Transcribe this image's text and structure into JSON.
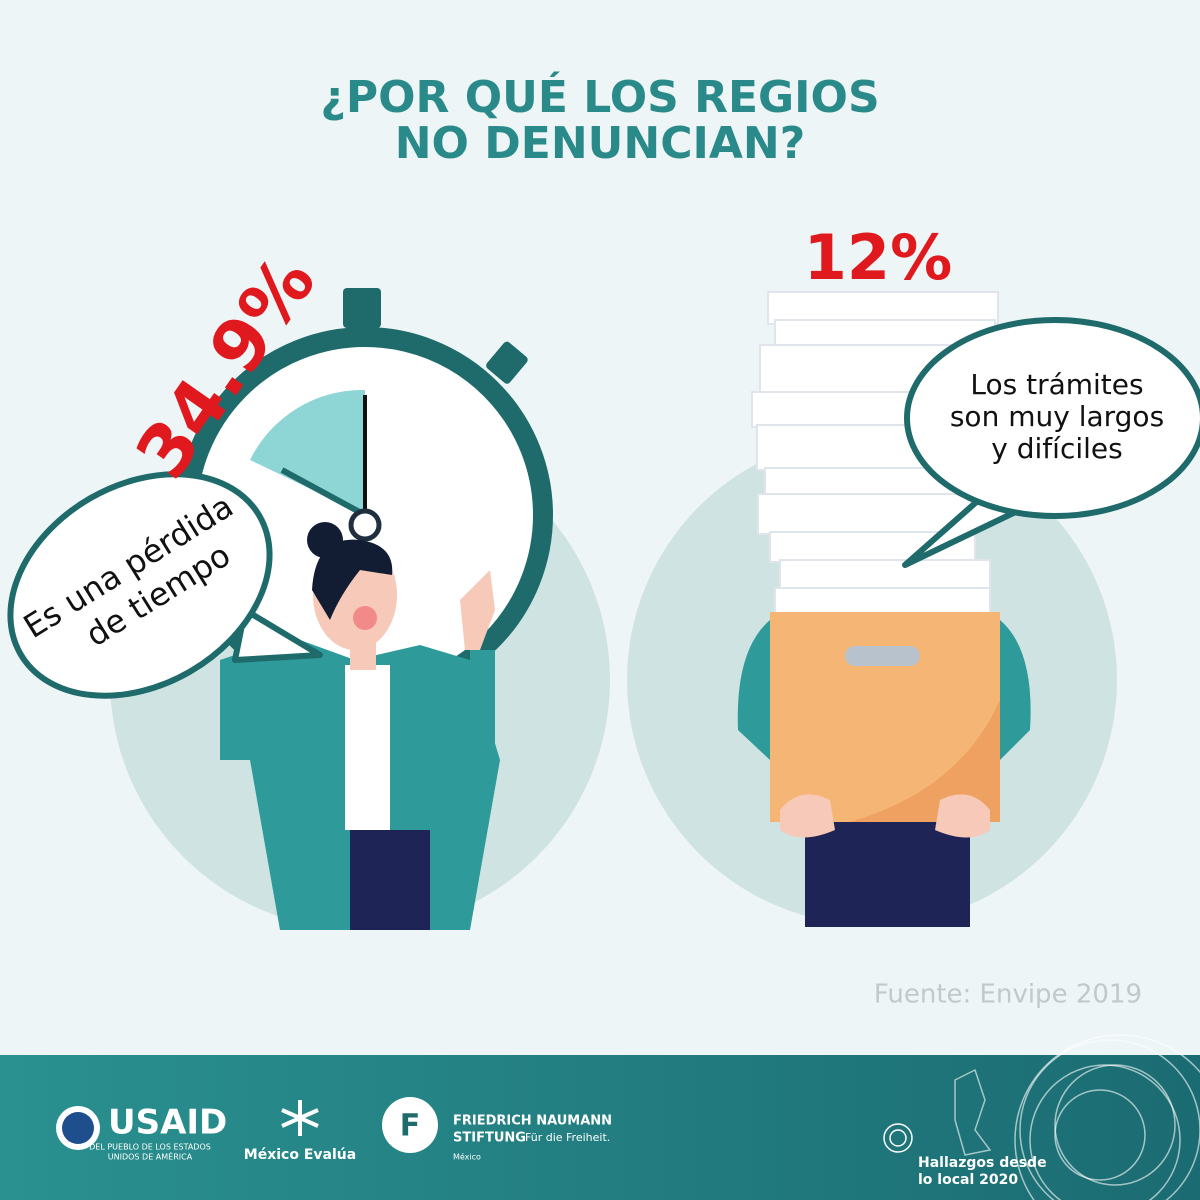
{
  "title_lines": [
    "¿POR QUÉ LOS REGIOS",
    "NO DENUNCIAN?"
  ],
  "left": {
    "percent": "34.9%",
    "bubble_lines": [
      "Es una pérdida",
      "de tiempo"
    ]
  },
  "right": {
    "percent": "12%",
    "bubble_lines": [
      "Los trámites",
      "son muy largos",
      "y difíciles"
    ]
  },
  "source": "Fuente: Envipe 2019",
  "footer": {
    "usaid": {
      "name": "USAID",
      "lines": [
        "DEL PUEBLO DE LOS ESTADOS",
        "UNIDOS DE AMÉRICA"
      ]
    },
    "mexico_evalua": "México Evalúa",
    "naumann": {
      "lines": [
        "FRIEDRICH NAUMANN",
        "STIFTUNG"
      ],
      "tagline": "Für die Freiheit.",
      "country": "México"
    },
    "hallazgos": [
      "Hallazgos desde",
      "lo local 2020"
    ]
  }
}
